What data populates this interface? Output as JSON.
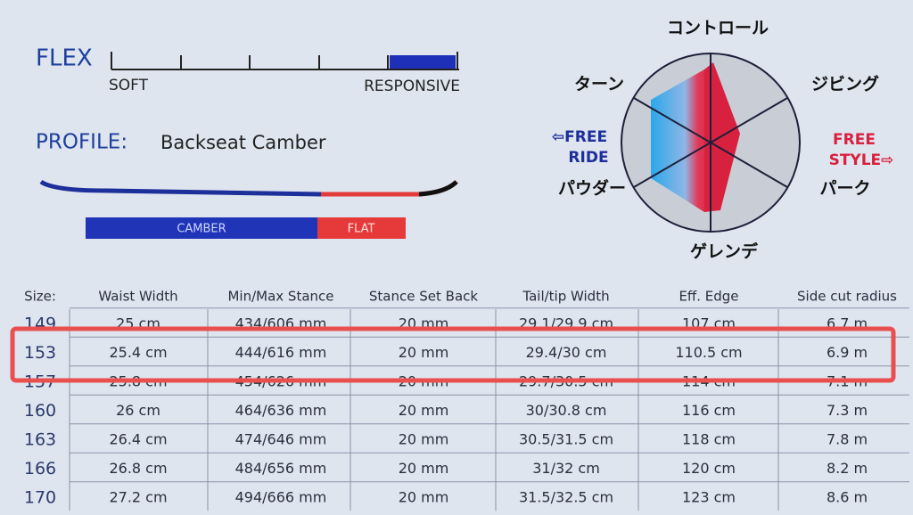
{
  "flex": {
    "label": "FLEX",
    "min": "SOFT",
    "max": "RESPONSIVE"
  },
  "profile": {
    "label": "PROFILE:",
    "name": "Backseat Camber",
    "segments": [
      "CAMBER",
      "FLAT"
    ]
  },
  "radar": {
    "top": "コントロール",
    "upper_right": "ジビング",
    "lower_right": "パーク",
    "bottom": "ゲレンデ",
    "lower_left": "パウダー",
    "upper_left": "ターン",
    "left_side": [
      "⇦FREE",
      "RIDE"
    ],
    "right_side": [
      "FREE",
      "STYLE⇨"
    ]
  },
  "table": {
    "header": [
      "Size:",
      "Waist Width",
      "Min/Max Stance",
      "Stance Set Back",
      "Tail/tip Width",
      "Eff. Edge",
      "Side cut radius"
    ],
    "rows": [
      [
        "149",
        "25 cm",
        "434/606 mm",
        "20 mm",
        "29.1/29.9 cm",
        "107 cm",
        "6.7 m"
      ],
      [
        "153",
        "25.4 cm",
        "444/616 mm",
        "20 mm",
        "29.4/30 cm",
        "110.5 cm",
        "6.9 m"
      ],
      [
        "157",
        "25.8 cm",
        "454/626 mm",
        "20 mm",
        "29.7/30.5 cm",
        "114 cm",
        "7.1 m"
      ],
      [
        "160",
        "26 cm",
        "464/636 mm",
        "20 mm",
        "30/30.8 cm",
        "116 cm",
        "7.3 m"
      ],
      [
        "163",
        "26.4 cm",
        "474/646 mm",
        "20 mm",
        "30.5/31.5 cm",
        "118 cm",
        "7.8 m"
      ],
      [
        "166",
        "26.8 cm",
        "484/656 mm",
        "20 mm",
        "31/32 cm",
        "120 cm",
        "8.2 m"
      ],
      [
        "170",
        "27.2 cm",
        "494/666 mm",
        "20 mm",
        "31.5/32.5 cm",
        "123 cm",
        "8.6 m"
      ]
    ]
  }
}
